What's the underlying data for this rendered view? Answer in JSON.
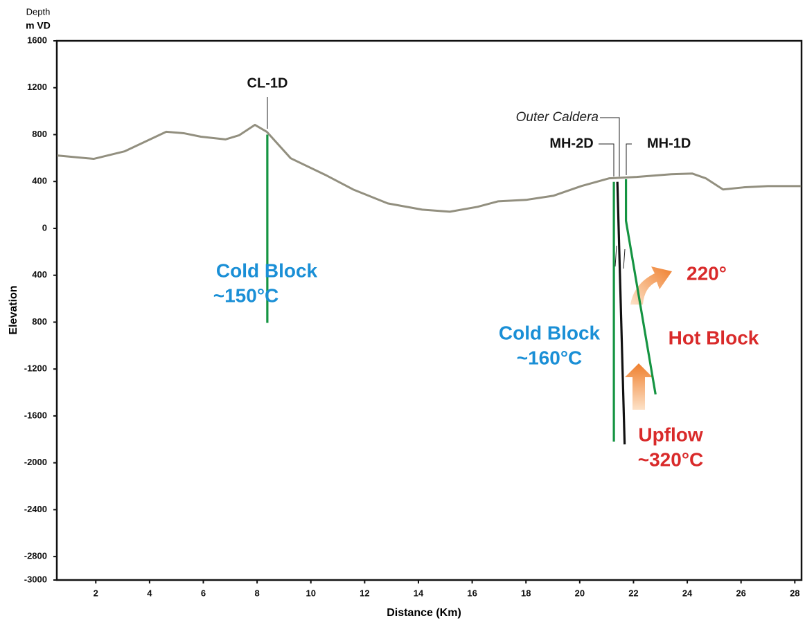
{
  "chart_data": {
    "type": "line",
    "y_unit_label_1": "Depth",
    "y_unit_label_2": "m VD",
    "ylabel": "Elevation",
    "xlabel": "Distance (Km)",
    "xlim": [
      0.55,
      28.25
    ],
    "ylim": [
      -3000,
      1600
    ],
    "xticks": [
      2,
      4,
      6,
      8,
      10,
      12,
      14,
      16,
      18,
      20,
      22,
      24,
      26,
      28
    ],
    "yticks": [
      1600,
      1200,
      800,
      400,
      0,
      {
        "value": -400,
        "label": "400"
      },
      {
        "value": -800,
        "label": "800"
      },
      -1200,
      -1600,
      -2000,
      -2400,
      -2800,
      -3000
    ],
    "series": [
      {
        "color": "#928f7f",
        "x": [
          0.56,
          1.92,
          3.08,
          4.62,
          5.27,
          5.91,
          6.82,
          7.33,
          7.92,
          8.36,
          9.25,
          10.54,
          11.57,
          12.86,
          14.14,
          15.17,
          16.2,
          16.97,
          18.0,
          19.03,
          20.06,
          21.09,
          22.12,
          23.4,
          24.18,
          24.69,
          25.33,
          26.1,
          27.0,
          28.23
        ],
        "values": [
          622,
          593,
          658,
          824,
          812,
          782,
          759,
          794,
          883,
          824,
          598,
          456,
          332,
          213,
          160,
          142,
          184,
          231,
          243,
          279,
          361,
          427,
          439,
          462,
          468,
          427,
          332,
          350,
          361,
          361
        ]
      },
      {
        "name": "CL-1D",
        "color": "#159442",
        "x": [
          8.38,
          8.38
        ],
        "values": [
          800,
          -806
        ]
      },
      {
        "name": "MH-2D",
        "color": "#159442",
        "x": [
          21.27,
          21.27
        ],
        "values": [
          397,
          -1819
        ]
      },
      {
        "color": "#111111",
        "x": [
          21.4,
          21.67
        ],
        "values": [
          397,
          -1843
        ]
      },
      {
        "name": "MH-1D",
        "color": "#159442",
        "x": [
          21.72,
          21.72,
          22.82
        ],
        "values": [
          420,
          65,
          -1416
        ]
      }
    ],
    "annotations": [
      "Outer Caldera",
      "Cold Block",
      "~150°C",
      "Cold Block",
      "~160°C",
      "220°",
      "Hot Block",
      "Upflow",
      "~320°C"
    ]
  }
}
